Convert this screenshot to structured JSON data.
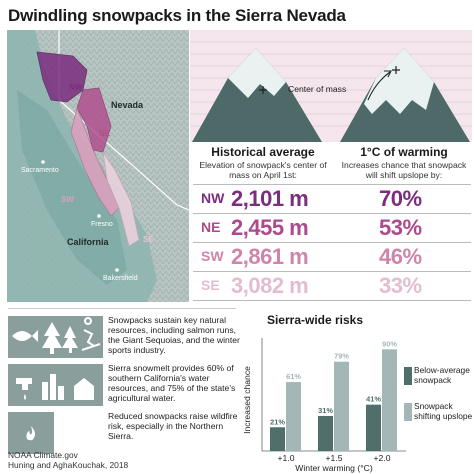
{
  "title": "Dwindling snowpacks in the Sierra Nevada",
  "map": {
    "labels": {
      "nevada": "Nevada",
      "california": "California",
      "sacramento": "Sacramento",
      "fresno": "Fresno",
      "bakersfield": "Bakersfield",
      "nw": "NW",
      "ne": "NE",
      "sw": "SW",
      "se": "SE"
    },
    "colors": {
      "nw": "#7b2d7e",
      "ne": "#b0508e",
      "sw": "#d9a0bd",
      "se": "#ead1dd"
    }
  },
  "mountains": {
    "center_of_mass_label": "Center of mass"
  },
  "columns": {
    "historical": {
      "heading": "Historical average",
      "sub": "Elevation of snowpack's center of mass on April 1st:"
    },
    "warming": {
      "heading": "1°C of warming",
      "sub": "Increases chance that snowpack will shift upslope by:"
    }
  },
  "regions": [
    {
      "code": "NW",
      "elevation": "2,101 m",
      "chance": "70%",
      "color": "#7b2d7e"
    },
    {
      "code": "NE",
      "elevation": "2,455 m",
      "chance": "53%",
      "color": "#ad4a8b"
    },
    {
      "code": "SW",
      "elevation": "2,861 m",
      "chance": "46%",
      "color": "#cf85ab"
    },
    {
      "code": "SE",
      "elevation": "3,082 m",
      "chance": "33%",
      "color": "#e2bcd0"
    }
  ],
  "info": [
    {
      "text": "Snowpacks sustain key natural resources, including salmon runs, the Giant Sequoias, and the winter sports industry."
    },
    {
      "text": "Sierra snowmelt provides 60% of southern California's water resources, and 75% of the state's agricultural water."
    },
    {
      "text": "Reduced snowpacks raise wildfire risk, especially in the Northern Sierra."
    }
  ],
  "credits": {
    "line1": "NOAA Climate.gov",
    "line2": "Huning and AghaKouchak, 2018"
  },
  "chart_data": {
    "type": "bar",
    "title": "Sierra-wide risks",
    "xlabel": "Winter warming (°C)",
    "ylabel": "Increased chance",
    "categories": [
      "+1.0",
      "+1.5",
      "+2.0"
    ],
    "series": [
      {
        "name": "Below-average snowpack",
        "values": [
          21,
          31,
          41
        ],
        "labels": [
          "21%",
          "31%",
          "41%"
        ],
        "color": "#4f6e6c"
      },
      {
        "name": "Snowpack shifting upslope",
        "values": [
          61,
          79,
          90
        ],
        "labels": [
          "61%",
          "79%",
          "90%"
        ],
        "color": "#a3b8b6"
      }
    ],
    "ylim": [
      0,
      100
    ],
    "grid": false,
    "legend": "right"
  }
}
